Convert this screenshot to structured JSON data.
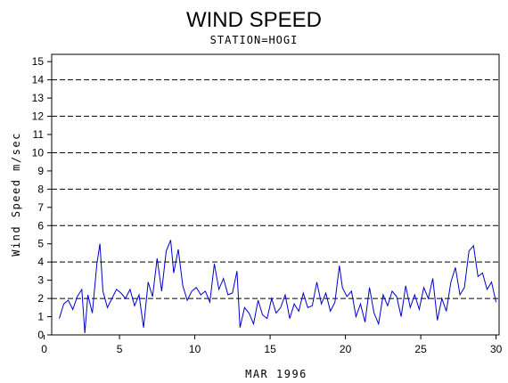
{
  "chart_data": {
    "type": "line",
    "title": "WIND SPEED",
    "subtitle": "STATION=HOGI",
    "xlabel": "MAR 1996",
    "ylabel": "Wind Speed m/sec",
    "xlim": [
      0.5,
      30.2
    ],
    "ylim": [
      0,
      15.4
    ],
    "x_ticks": [
      0,
      5,
      10,
      15,
      20,
      25,
      30
    ],
    "y_ticks": [
      0,
      1,
      2,
      3,
      4,
      5,
      6,
      7,
      8,
      9,
      10,
      11,
      12,
      13,
      14,
      15
    ],
    "grid": {
      "horizontal_dashed_at": [
        0,
        2,
        4,
        6,
        8,
        10,
        12,
        14
      ]
    },
    "series_color": "#0000cc",
    "x": [
      1.0,
      1.3,
      1.6,
      1.9,
      2.2,
      2.5,
      2.7,
      2.9,
      3.2,
      3.5,
      3.7,
      3.9,
      4.2,
      4.5,
      4.8,
      5.1,
      5.4,
      5.7,
      6.0,
      6.3,
      6.6,
      6.9,
      7.2,
      7.5,
      7.8,
      8.1,
      8.4,
      8.6,
      8.9,
      9.2,
      9.5,
      9.8,
      10.1,
      10.4,
      10.7,
      11.0,
      11.3,
      11.6,
      11.9,
      12.2,
      12.5,
      12.8,
      13.0,
      13.3,
      13.6,
      13.9,
      14.2,
      14.5,
      14.8,
      15.1,
      15.4,
      15.7,
      16.0,
      16.3,
      16.6,
      16.9,
      17.2,
      17.5,
      17.8,
      18.1,
      18.4,
      18.7,
      19.0,
      19.3,
      19.6,
      19.8,
      20.1,
      20.4,
      20.7,
      21.0,
      21.3,
      21.6,
      21.9,
      22.2,
      22.5,
      22.8,
      23.1,
      23.4,
      23.7,
      24.0,
      24.3,
      24.6,
      24.9,
      25.2,
      25.5,
      25.8,
      26.1,
      26.4,
      26.7,
      27.0,
      27.3,
      27.6,
      27.9,
      28.2,
      28.5,
      28.8,
      29.1,
      29.4,
      29.7,
      30.0
    ],
    "values": [
      0.9,
      1.7,
      1.9,
      1.4,
      2.1,
      2.5,
      0.1,
      2.2,
      1.2,
      3.9,
      5.0,
      2.4,
      1.5,
      2.0,
      2.5,
      2.3,
      2.0,
      2.5,
      1.6,
      2.2,
      0.4,
      2.9,
      2.1,
      4.2,
      2.4,
      4.6,
      5.2,
      3.4,
      4.7,
      2.7,
      1.9,
      2.4,
      2.6,
      2.2,
      2.4,
      1.8,
      3.9,
      2.5,
      3.1,
      2.2,
      2.3,
      3.5,
      0.4,
      1.5,
      1.2,
      0.6,
      1.9,
      1.1,
      0.9,
      2.0,
      1.2,
      1.5,
      2.2,
      0.9,
      1.7,
      1.3,
      2.3,
      1.5,
      1.6,
      2.9,
      1.7,
      2.3,
      1.3,
      1.8,
      3.8,
      2.6,
      2.1,
      2.4,
      1.0,
      1.7,
      0.7,
      2.6,
      1.2,
      0.6,
      2.2,
      1.6,
      2.4,
      2.1,
      1.0,
      2.7,
      1.5,
      2.2,
      1.4,
      2.6,
      2.0,
      3.1,
      0.8,
      2.0,
      1.3,
      2.9,
      3.7,
      2.2,
      2.6,
      4.6,
      4.9,
      3.2,
      3.4,
      2.5,
      2.9,
      1.8
    ]
  }
}
